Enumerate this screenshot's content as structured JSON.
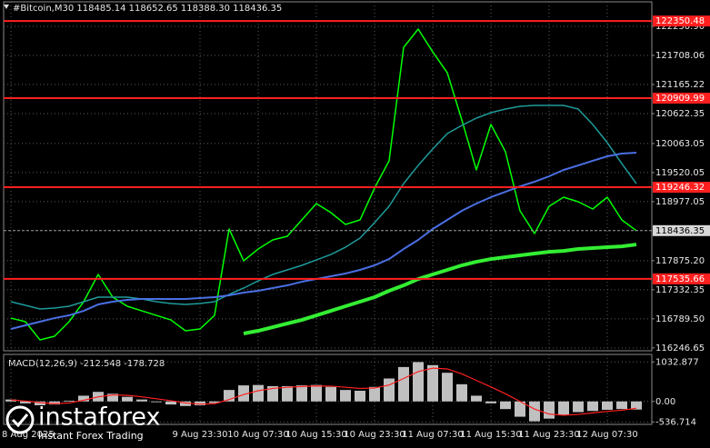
{
  "chart_data": [
    {
      "type": "line",
      "title": "#Bitcoin,M30  118485.14 118652.65 118388.30 118436.35",
      "categories": [
        "8 Aug 2025",
        null,
        null,
        null,
        null,
        null,
        null,
        null,
        null,
        null,
        null,
        null,
        null,
        "9 Aug 23:30",
        null,
        null,
        null,
        "10 Aug 07:30",
        null,
        null,
        null,
        "10 Aug 15:30",
        null,
        null,
        null,
        "10 Aug 23:30",
        null,
        null,
        null,
        "11 Aug 07:30",
        null,
        null,
        null,
        "11 Aug 15:30",
        null,
        null,
        null,
        "11 Aug 23:30",
        null,
        null,
        null,
        "12 Aug 07:30",
        null,
        null
      ],
      "series": [
        {
          "color": "#00ff00",
          "line_width": 1.5,
          "values": [
            116803,
            116736,
            116396,
            116464,
            116736,
            117109,
            117618,
            117194,
            117024,
            116939,
            116854,
            116769,
            116566,
            116600,
            116854,
            118467,
            117873,
            118093,
            118263,
            118331,
            118636,
            118942,
            118772,
            118552,
            118636,
            119230,
            119740,
            121858,
            122200,
            121775,
            121385,
            120503,
            119570,
            120418,
            119910,
            118806,
            118382,
            118891,
            119061,
            118976,
            118840,
            119061,
            118636,
            118436.35
          ]
        },
        {
          "color": "#1f9a9a",
          "line_width": 1.5,
          "values": [
            117109,
            117041,
            116973,
            116990,
            117024,
            117109,
            117194,
            117194,
            117194,
            117160,
            117109,
            117075,
            117058,
            117075,
            117109,
            117245,
            117364,
            117499,
            117618,
            117703,
            117788,
            117889,
            117991,
            118127,
            118297,
            118585,
            118891,
            119315,
            119654,
            119960,
            120248,
            120401,
            120537,
            120639,
            120707,
            120757,
            120774,
            120774,
            120774,
            120707,
            120418,
            120079,
            119688,
            119315
          ]
        },
        {
          "color": "#4a6fe3",
          "line_width": 2,
          "values": [
            116600,
            116668,
            116736,
            116803,
            116854,
            116939,
            117058,
            117109,
            117143,
            117160,
            117160,
            117160,
            117160,
            117177,
            117194,
            117228,
            117279,
            117313,
            117364,
            117414,
            117482,
            117533,
            117584,
            117635,
            117703,
            117788,
            117906,
            118093,
            118263,
            118467,
            118636,
            118806,
            118942,
            119061,
            119162,
            119264,
            119349,
            119451,
            119570,
            119654,
            119740,
            119824,
            119875,
            119892
          ]
        },
        {
          "color": "#33ee33",
          "line_width": 4,
          "values": [
            null,
            null,
            null,
            null,
            null,
            null,
            null,
            null,
            null,
            null,
            null,
            null,
            null,
            null,
            null,
            null,
            116515,
            116566,
            116634,
            116702,
            116769,
            116854,
            116939,
            117024,
            117109,
            117194,
            117313,
            117414,
            117533,
            117618,
            117703,
            117788,
            117855,
            117906,
            117940,
            117974,
            118008,
            118041,
            118058,
            118093,
            118110,
            118127,
            118143,
            118177
          ]
        }
      ],
      "levels": [
        122350.48,
        120909.99,
        119246.32,
        117535.66
      ],
      "level_color": "#ff1f1f",
      "current_price": 118436.35,
      "ylim": [
        116176,
        122709
      ],
      "yticks": [
        {
          "value": 122250.9,
          "label": "122250.90"
        },
        121708.06,
        121165.22,
        120622.35,
        120063.05,
        119520.05,
        118977.05,
        {
          "value": 117875.2,
          "label": "117875.20"
        },
        117332.35,
        {
          "value": 116789.5,
          "label": "116789.50"
        },
        116246.65
      ],
      "grid": true
    },
    {
      "type": "bar",
      "title": "MACD(12,26,9) -212.548 -178.728",
      "values": [
        50,
        -50,
        -100,
        -80,
        20,
        150,
        250,
        200,
        120,
        50,
        -20,
        -80,
        -120,
        -100,
        -40,
        300,
        420,
        430,
        400,
        400,
        420,
        430,
        380,
        300,
        280,
        380,
        600,
        900,
        1030,
        950,
        750,
        450,
        150,
        -50,
        -200,
        -400,
        -520,
        -450,
        -350,
        -280,
        -250,
        -220,
        -200,
        -212.548
      ],
      "color": "#c0c0c0",
      "signal": {
        "color": "#ff2020",
        "values": [
          40,
          10,
          -30,
          -60,
          -40,
          30,
          120,
          170,
          160,
          120,
          70,
          20,
          -40,
          -70,
          -60,
          50,
          180,
          280,
          340,
          370,
          390,
          405,
          400,
          370,
          340,
          350,
          430,
          600,
          780,
          870,
          850,
          720,
          550,
          380,
          200,
          0,
          -200,
          -330,
          -360,
          -340,
          -300,
          -260,
          -230,
          -178.728
        ]
      },
      "ylim": [
        -600,
        1230
      ],
      "yticks": [
        1032.877,
        {
          "value": 0,
          "label": "0.00"
        },
        -536.714
      ],
      "grid": true
    }
  ],
  "watermark": {
    "name": "instaforex",
    "tagline": "Instant Forex Trading"
  }
}
